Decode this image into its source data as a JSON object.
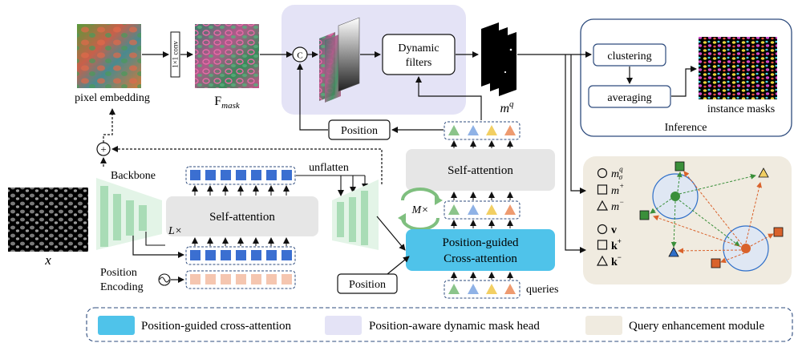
{
  "labels": {
    "pixel_embedding": "pixel embedding",
    "conv": "1×1 conv",
    "fmask_main": "F",
    "fmask_sub": "mask",
    "concat": "C",
    "dynamic_filters_line1": "Dynamic",
    "dynamic_filters_line2": "filters",
    "mq_main": "m",
    "mq_sup": "q",
    "clustering": "clustering",
    "averaging": "averaging",
    "instance_masks": "instance masks",
    "inference": "Inference",
    "position_top": "Position",
    "plus": "+",
    "backbone": "Backbone",
    "self_attention_left": "Self-attention",
    "l_times": "L×",
    "unflatten": "unflatten",
    "self_attention_right": "Self-attention",
    "m_times": "M×",
    "cross_line1": "Position-guided",
    "cross_line2": "Cross-attention",
    "position_bottom": "Position",
    "queries": "queries",
    "x_label": "x",
    "position_encoding_line1": "Position",
    "position_encoding_line2": "Encoding",
    "qe_m_sigma": "m",
    "qe_m_sigma_sup": "q",
    "qe_m_sigma_sub": "σ",
    "qe_m_plus": "m",
    "qe_m_plus_sup": "+",
    "qe_m_minus": "m",
    "qe_m_minus_sup": "−",
    "qe_v": "v",
    "qe_k_plus": "k",
    "qe_k_plus_sup": "+",
    "qe_k_minus": "k",
    "qe_k_minus_sup": "−"
  },
  "legend": [
    {
      "label": "Position-guided cross-attention",
      "color": "#4fc3ea"
    },
    {
      "label": "Position-aware dynamic mask head",
      "color": "#e4e3f6"
    },
    {
      "label": "Query enhancement module",
      "color": "#f0ebe0"
    }
  ],
  "colors": {
    "token_blue": "#3b6fd1",
    "token_peach": "#f5c6b0",
    "backbone_green": "#a9dcb6",
    "query_green": "#8bc48a",
    "query_blue": "#8fb2e6",
    "query_yellow": "#f2cf63",
    "query_orange": "#ee9b70",
    "qe_green": "#3a8f3a",
    "qe_orange": "#d9622b",
    "qe_blue": "#2f6fc9"
  }
}
